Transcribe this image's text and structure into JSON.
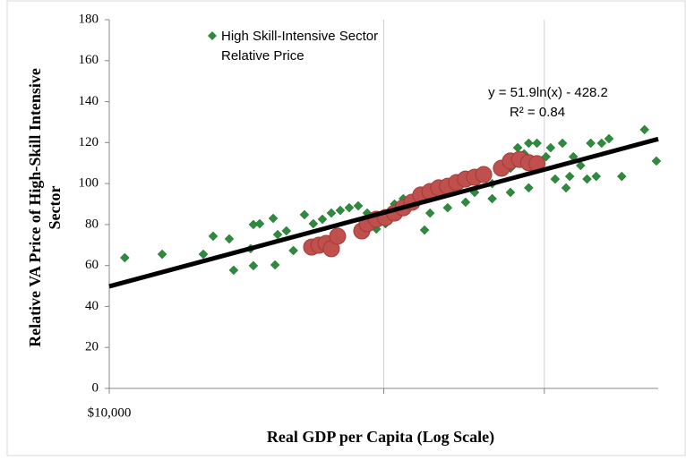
{
  "chart_data": {
    "type": "scatter",
    "xlabel": "Real GDP per Capita (Log Scale)",
    "ylabel": "Relative VA Price of High-Skill Intensive Sector",
    "xscale": "log",
    "xlim": [
      10000,
      40000
    ],
    "xticks": [
      {
        "value": 10000,
        "label": "$10,000"
      },
      {
        "value": 20000,
        "label": null
      },
      {
        "value": 30000,
        "label": null
      }
    ],
    "ylim": [
      0,
      180
    ],
    "yticks": [
      0,
      20,
      40,
      60,
      80,
      100,
      120,
      140,
      160,
      180
    ],
    "xgrid": true,
    "ygrid": false,
    "legend": "top-left",
    "series": [
      {
        "name": "High Skill-Intensive Sector Relative Price",
        "color": "#2e8b3e",
        "marker": "diamond",
        "x": [
          10400,
          11430,
          12680,
          13000,
          13540,
          13690,
          14290,
          14390,
          14390,
          14620,
          15130,
          15200,
          15300,
          15640,
          15920,
          16370,
          16740,
          17130,
          17520,
          17920,
          18330,
          18750,
          19180,
          19630,
          20090,
          20550,
          21010,
          21480,
          22170,
          22480,
          22980,
          23500,
          24040,
          24590,
          25160,
          25740,
          26300,
          26920,
          27540,
          28050,
          28510,
          28840,
          29170,
          29450,
          30130,
          30480,
          31410,
          31690,
          32280,
          32880,
          33420,
          33730,
          34670,
          35320,
          36480,
          38640,
          39810,
          34200,
          30830,
          31990,
          23500,
          24590,
          26300,
          27540,
          28840,
          25160,
          22480,
          20090
        ],
        "values": [
          63.8,
          65.5,
          65.5,
          74.3,
          73,
          57.7,
          68.2,
          80,
          59.9,
          80.4,
          83,
          60.3,
          75.1,
          76.9,
          67.3,
          84.8,
          80.4,
          82.6,
          85.6,
          86.9,
          88.2,
          89.1,
          85.6,
          77.8,
          84.8,
          90,
          92.6,
          90.9,
          77.3,
          93.5,
          95.7,
          97.9,
          100,
          102.2,
          104.4,
          103.1,
          100,
          106.6,
          107.5,
          117.5,
          114.5,
          119.7,
          111,
          119.7,
          113.1,
          117.5,
          119.7,
          97.9,
          113.1,
          108.8,
          102.2,
          119.7,
          119.7,
          121.9,
          103.5,
          126.3,
          111,
          103.5,
          102.2,
          103.5,
          88.2,
          90.9,
          92.6,
          95.7,
          97.9,
          95.7,
          85.6,
          80.4
        ]
      },
      {
        "color": "#c0504d",
        "marker": "circle",
        "x": [
          16670,
          16980,
          17290,
          17520,
          17800,
          18920,
          19180,
          19630,
          20090,
          20550,
          21010,
          21480,
          21960,
          22480,
          22980,
          23500,
          24040,
          24590,
          25160,
          25740,
          26920,
          27540,
          28180,
          28840,
          29450
        ],
        "values": [
          69,
          69.9,
          70.8,
          68.2,
          74.3,
          76.9,
          80.4,
          82.6,
          83.4,
          85.6,
          88.2,
          90.9,
          94.4,
          96.1,
          97.9,
          98.7,
          100.5,
          102.2,
          103.1,
          104.4,
          107.5,
          111,
          111.8,
          110.2,
          109.7
        ]
      }
    ],
    "trendline": {
      "slope": 51.9,
      "intercept": -428.2,
      "label": "y = 51.9ln(x) - 428.2",
      "r2_label": "R² = 0.84",
      "color": "#000000"
    }
  }
}
